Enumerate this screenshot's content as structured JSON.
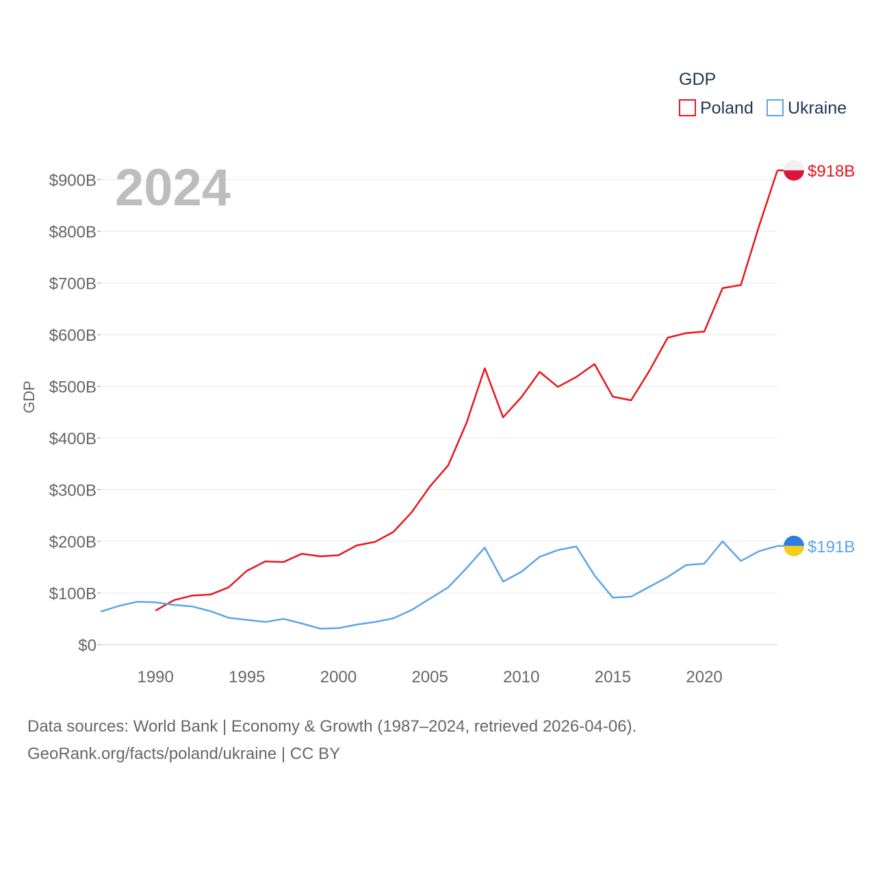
{
  "chart_data": {
    "type": "line",
    "year_label": "2024",
    "ylabel": "GDP",
    "xlim": [
      1987,
      2024
    ],
    "ylim": [
      0,
      900
    ],
    "x_ticks": [
      1990,
      1995,
      2000,
      2005,
      2010,
      2015,
      2020
    ],
    "x_tick_labels": [
      "1990",
      "1995",
      "2000",
      "2005",
      "2010",
      "2015",
      "2020"
    ],
    "y_ticks": [
      0,
      100,
      200,
      300,
      400,
      500,
      600,
      700,
      800,
      900
    ],
    "y_tick_labels": [
      "$0",
      "$100B",
      "$200B",
      "$300B",
      "$400B",
      "$500B",
      "$600B",
      "$700B",
      "$800B",
      "$900B"
    ],
    "legend": {
      "title": "GDP",
      "placement": "top-right"
    },
    "series": [
      {
        "name": "Poland",
        "color": "#e8141c",
        "end_label": "$918B",
        "flag_colors": [
          "#f0f0f0",
          "#dc143c"
        ],
        "x": [
          1990,
          1991,
          1992,
          1993,
          1994,
          1995,
          1996,
          1997,
          1998,
          1999,
          2000,
          2001,
          2002,
          2003,
          2004,
          2005,
          2006,
          2007,
          2008,
          2009,
          2010,
          2011,
          2012,
          2013,
          2014,
          2015,
          2016,
          2017,
          2018,
          2019,
          2020,
          2021,
          2022,
          2023,
          2024
        ],
        "values": [
          66,
          86,
          95,
          97,
          111,
          143,
          161,
          160,
          176,
          171,
          173,
          192,
          199,
          218,
          256,
          306,
          347,
          429,
          535,
          440,
          479,
          528,
          499,
          518,
          543,
          480,
          473,
          530,
          594,
          603,
          606,
          690,
          696,
          811,
          918
        ]
      },
      {
        "name": "Ukraine",
        "color": "#5ba4e8",
        "end_label": "$191B",
        "flag_colors": [
          "#2f7de1",
          "#f5cc1a"
        ],
        "x": [
          1987,
          1988,
          1989,
          1990,
          1991,
          1992,
          1993,
          1994,
          1995,
          1996,
          1997,
          1998,
          1999,
          2000,
          2001,
          2002,
          2003,
          2004,
          2005,
          2006,
          2007,
          2008,
          2009,
          2010,
          2011,
          2012,
          2013,
          2014,
          2015,
          2016,
          2017,
          2018,
          2019,
          2020,
          2021,
          2022,
          2023,
          2024
        ],
        "values": [
          64,
          75,
          83,
          82,
          77,
          74,
          65,
          52,
          48,
          44,
          50,
          41,
          31,
          32,
          39,
          44,
          51,
          67,
          89,
          111,
          148,
          188,
          122,
          141,
          170,
          183,
          190,
          134,
          91,
          93,
          112,
          131,
          154,
          157,
          200,
          162,
          181,
          191
        ]
      }
    ]
  },
  "footer": {
    "line1": "Data sources: World Bank | Economy & Growth (1987–2024, retrieved 2026-04-06).",
    "line2": "GeoRank.org/facts/poland/ukraine | CC BY"
  }
}
